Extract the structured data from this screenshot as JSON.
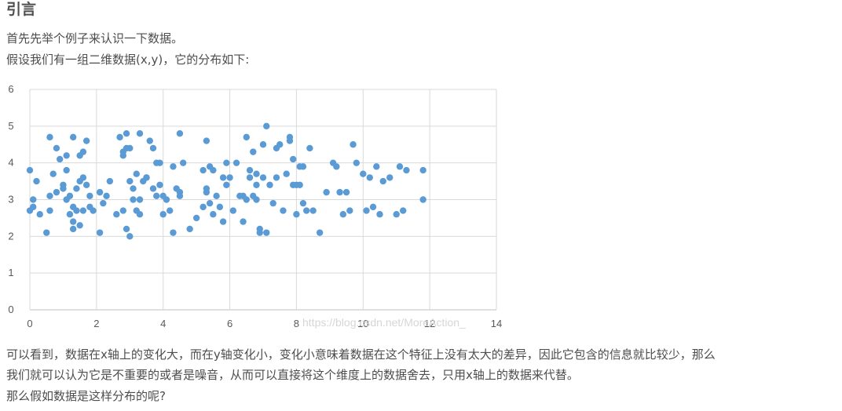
{
  "article": {
    "heading": "引言",
    "intro_1": "首先先举个例子来认识一下数据。",
    "intro_2": "假设我们有一组二维数据(x,y)，它的分布如下:",
    "body_1": "可以看到，数据在x轴上的变化大，而在y轴变化小，变化小意味着数据在这个特征上没有太大的差异，因此它包含的信息就比较少，那么",
    "body_2": "我们就可以认为它是不重要的或者是噪音，从而可以直接将这个维度上的数据舍去，只用x轴上的数据来代替。",
    "body_3": "那么假如数据是这样分布的呢?",
    "watermark": "https://blog.csdn.net/MoreAction_"
  },
  "chart_data": {
    "type": "scatter",
    "xlim": [
      0,
      14
    ],
    "ylim": [
      0,
      6
    ],
    "xticks": [
      0,
      2,
      4,
      6,
      8,
      10,
      12,
      14
    ],
    "yticks": [
      0,
      1,
      2,
      3,
      4,
      5,
      6
    ],
    "grid": true,
    "legend": "none",
    "point_color": "#5b9bd5",
    "series": [
      {
        "x": [
          0.0,
          0.1,
          0.2,
          0.3,
          0.0,
          0.5,
          0.6,
          0.6,
          0.7,
          0.8,
          0.8,
          0.9,
          1.0,
          1.1,
          1.1,
          1.1,
          1.2,
          1.2,
          1.3,
          1.3,
          1.3,
          1.4,
          1.4,
          1.5,
          1.5,
          1.6,
          1.6,
          1.7,
          1.7,
          1.8,
          1.8,
          1.9,
          0.1,
          0.6,
          1.0,
          1.3,
          1.5,
          1.6,
          2.1,
          2.1,
          2.2,
          2.3,
          2.4,
          2.6,
          2.7,
          2.8,
          2.8,
          2.9,
          2.9,
          3.0,
          3.0,
          3.0,
          3.1,
          3.2,
          3.2,
          3.3,
          3.3,
          3.3,
          3.4,
          3.5,
          3.6,
          3.7,
          3.7,
          3.8,
          3.8,
          3.9,
          3.9,
          4.0,
          4.0,
          4.1,
          4.2,
          4.3,
          4.3,
          4.4,
          4.5,
          4.5,
          4.6,
          4.8,
          5.0,
          5.2,
          5.2,
          5.3,
          5.3,
          5.4,
          5.4,
          5.5,
          5.5,
          5.6,
          5.7,
          5.8,
          5.8,
          5.9,
          5.9,
          6.0,
          6.1,
          6.2,
          6.3,
          6.4,
          6.4,
          6.5,
          6.5,
          6.6,
          6.6,
          6.7,
          6.7,
          6.8,
          6.8,
          6.9,
          6.9,
          7.0,
          7.0,
          7.1,
          7.2,
          7.3,
          7.4,
          7.4,
          7.5,
          7.6,
          7.7,
          7.8,
          7.8,
          7.9,
          7.9,
          8.0,
          8.0,
          8.1,
          8.1,
          8.2,
          8.2,
          8.3,
          8.4,
          8.5,
          8.7,
          8.9,
          9.1,
          9.2,
          9.3,
          9.4,
          9.5,
          9.6,
          9.7,
          9.8,
          10.0,
          10.1,
          10.2,
          10.3,
          10.4,
          10.5,
          10.6,
          10.8,
          11.0,
          11.1,
          11.2,
          11.3,
          11.8,
          11.8,
          3.1,
          4.5,
          5.3,
          6.8,
          7.1,
          2.9,
          2.8,
          3.5
        ],
        "y": [
          2.7,
          2.8,
          3.5,
          2.6,
          3.8,
          2.1,
          2.7,
          4.7,
          3.7,
          4.4,
          3.2,
          4.1,
          3.4,
          3.8,
          4.2,
          3.0,
          2.6,
          3.1,
          2.2,
          4.7,
          2.8,
          2.7,
          3.3,
          4.2,
          3.5,
          4.3,
          2.7,
          3.4,
          4.6,
          2.8,
          3.1,
          2.7,
          3.0,
          3.1,
          3.3,
          2.4,
          2.3,
          3.6,
          3.2,
          2.1,
          2.9,
          3.1,
          3.5,
          2.6,
          4.7,
          4.3,
          2.7,
          4.8,
          2.2,
          3.5,
          4.4,
          2.0,
          3.0,
          3.7,
          2.7,
          4.8,
          3.0,
          2.6,
          3.5,
          3.6,
          4.6,
          3.3,
          4.4,
          4.0,
          3.1,
          3.4,
          4.0,
          3.1,
          2.6,
          3.0,
          2.7,
          2.1,
          3.9,
          3.3,
          4.8,
          3.2,
          4.0,
          2.2,
          2.5,
          3.8,
          2.8,
          3.2,
          4.6,
          2.9,
          3.9,
          2.6,
          3.8,
          3.1,
          2.8,
          2.4,
          3.6,
          3.4,
          4.0,
          3.6,
          2.7,
          4.0,
          3.1,
          2.4,
          3.1,
          3.0,
          4.7,
          3.6,
          3.8,
          3.1,
          4.3,
          3.4,
          3.7,
          2.2,
          2.1,
          3.6,
          4.5,
          5.0,
          3.4,
          2.9,
          4.4,
          3.6,
          4.5,
          2.7,
          3.7,
          4.6,
          4.7,
          3.4,
          4.1,
          3.4,
          2.6,
          3.9,
          3.4,
          3.9,
          2.9,
          2.7,
          4.4,
          2.7,
          2.1,
          3.2,
          4.0,
          3.9,
          3.2,
          2.6,
          3.2,
          2.7,
          4.5,
          4.0,
          3.7,
          2.7,
          3.6,
          2.8,
          3.9,
          2.6,
          3.5,
          3.6,
          2.6,
          3.9,
          2.7,
          3.8,
          3.8,
          3.0,
          3.3,
          3.1,
          3.3,
          3.0,
          2.1,
          4.4,
          4.2,
          3.6
        ]
      }
    ]
  }
}
